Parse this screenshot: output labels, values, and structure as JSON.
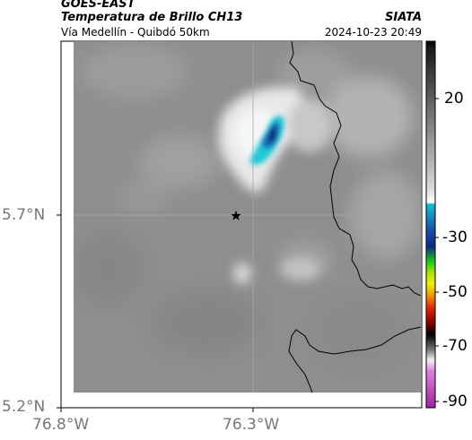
{
  "header": {
    "satellite": "GOES-EAST",
    "product": "Temperatura de Brillo CH13",
    "route": "Vía Medellín - Quibdó 50km",
    "agency": "SIATA",
    "datetime": "2024-10-23 20:49"
  },
  "axes": {
    "lat_labels": [
      "5.7°N",
      "5.2°N"
    ],
    "lon_labels": [
      "76.8°W",
      "76.3°W"
    ]
  },
  "colorbar": {
    "ticks": [
      "20",
      "-30",
      "-50",
      "-70",
      "-90"
    ],
    "colors": {
      "black": "#000000",
      "white": "#ffffff",
      "cyan": "#10c0d0",
      "blue": "#0a3c9c",
      "green": "#16c316",
      "yellow": "#f0f000",
      "red": "#e02000",
      "magenta": "#d040c0"
    }
  },
  "map": {
    "marker": "star-icon",
    "cloud_colors": {
      "background": "#8e8e8e",
      "bright": "#f2f2f2",
      "cold_core": "#0a3c9c",
      "cold_edge": "#20c8d8"
    }
  }
}
